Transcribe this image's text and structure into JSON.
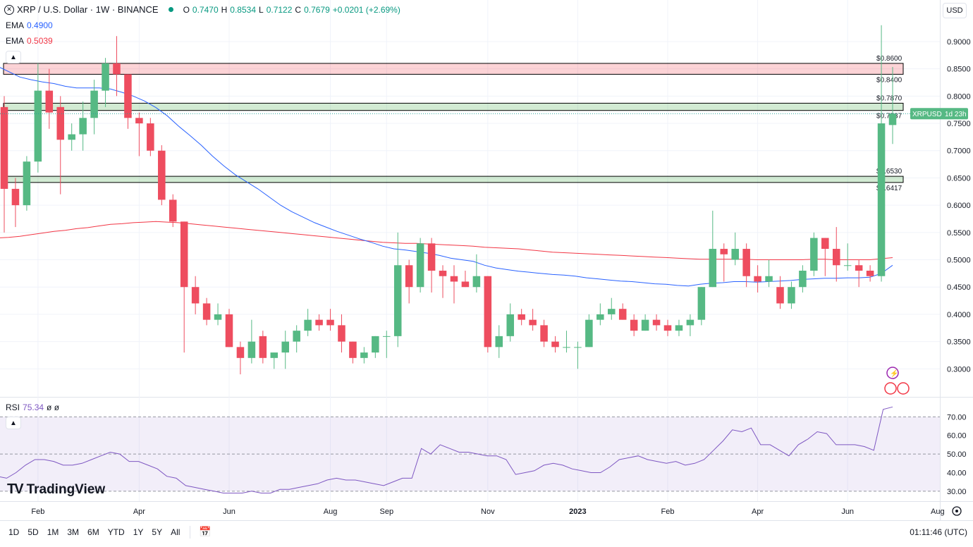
{
  "header": {
    "symbol_title": "XRP / U.S. Dollar · 1W · BINANCE",
    "ohlc": {
      "o_label": "O",
      "o": "0.7470",
      "h_label": "H",
      "h": "0.8534",
      "l_label": "L",
      "l": "0.7122",
      "c_label": "C",
      "c": "0.7679",
      "chg": "+0.0201 (+2.69%)"
    },
    "ema1_label": "EMA",
    "ema1_value": "0.4900",
    "ema2_label": "EMA",
    "ema2_value": "0.5039",
    "currency": "USD"
  },
  "colors": {
    "up": "#26a69a",
    "down": "#ef5350",
    "up_body": "#56b984",
    "down_body": "#ee4d5f",
    "ema_fast": "#2962ff",
    "ema_slow": "#f23645",
    "rsi": "#7e57c2"
  },
  "chart_data": {
    "type": "candlestick",
    "y_axis_ticks": [
      "0.3000",
      "0.3500",
      "0.4000",
      "0.4500",
      "0.5000",
      "0.5500",
      "0.6000",
      "0.6500",
      "0.7000",
      "0.7500",
      "0.8000",
      "0.8500",
      "0.9000"
    ],
    "ylim": [
      0.25,
      0.94
    ],
    "x_axis_labels": [
      "Feb",
      "Apr",
      "Jun",
      "Aug",
      "Sep",
      "Nov",
      "2023",
      "Feb",
      "Apr",
      "Jun",
      "Aug"
    ],
    "candles": [
      {
        "o": 0.78,
        "h": 0.8,
        "l": 0.55,
        "c": 0.63
      },
      {
        "o": 0.63,
        "h": 0.65,
        "l": 0.56,
        "c": 0.6
      },
      {
        "o": 0.6,
        "h": 0.69,
        "l": 0.59,
        "c": 0.68
      },
      {
        "o": 0.68,
        "h": 0.86,
        "l": 0.66,
        "c": 0.81
      },
      {
        "o": 0.81,
        "h": 0.85,
        "l": 0.74,
        "c": 0.77
      },
      {
        "o": 0.78,
        "h": 0.8,
        "l": 0.62,
        "c": 0.72
      },
      {
        "o": 0.72,
        "h": 0.75,
        "l": 0.7,
        "c": 0.73
      },
      {
        "o": 0.73,
        "h": 0.79,
        "l": 0.7,
        "c": 0.76
      },
      {
        "o": 0.76,
        "h": 0.83,
        "l": 0.73,
        "c": 0.81
      },
      {
        "o": 0.81,
        "h": 0.87,
        "l": 0.78,
        "c": 0.86
      },
      {
        "o": 0.86,
        "h": 0.91,
        "l": 0.8,
        "c": 0.84
      },
      {
        "o": 0.84,
        "h": 0.84,
        "l": 0.74,
        "c": 0.76
      },
      {
        "o": 0.76,
        "h": 0.77,
        "l": 0.69,
        "c": 0.75
      },
      {
        "o": 0.75,
        "h": 0.76,
        "l": 0.69,
        "c": 0.7
      },
      {
        "o": 0.7,
        "h": 0.71,
        "l": 0.6,
        "c": 0.61
      },
      {
        "o": 0.61,
        "h": 0.62,
        "l": 0.56,
        "c": 0.57
      },
      {
        "o": 0.57,
        "h": 0.57,
        "l": 0.33,
        "c": 0.45
      },
      {
        "o": 0.45,
        "h": 0.47,
        "l": 0.4,
        "c": 0.42
      },
      {
        "o": 0.42,
        "h": 0.43,
        "l": 0.38,
        "c": 0.39
      },
      {
        "o": 0.39,
        "h": 0.42,
        "l": 0.38,
        "c": 0.4
      },
      {
        "o": 0.4,
        "h": 0.41,
        "l": 0.34,
        "c": 0.34
      },
      {
        "o": 0.34,
        "h": 0.35,
        "l": 0.29,
        "c": 0.32
      },
      {
        "o": 0.32,
        "h": 0.39,
        "l": 0.31,
        "c": 0.35
      },
      {
        "o": 0.36,
        "h": 0.37,
        "l": 0.31,
        "c": 0.32
      },
      {
        "o": 0.32,
        "h": 0.33,
        "l": 0.3,
        "c": 0.33
      },
      {
        "o": 0.33,
        "h": 0.37,
        "l": 0.3,
        "c": 0.35
      },
      {
        "o": 0.35,
        "h": 0.38,
        "l": 0.33,
        "c": 0.37
      },
      {
        "o": 0.37,
        "h": 0.41,
        "l": 0.36,
        "c": 0.39
      },
      {
        "o": 0.39,
        "h": 0.4,
        "l": 0.37,
        "c": 0.38
      },
      {
        "o": 0.39,
        "h": 0.41,
        "l": 0.37,
        "c": 0.38
      },
      {
        "o": 0.38,
        "h": 0.4,
        "l": 0.33,
        "c": 0.35
      },
      {
        "o": 0.35,
        "h": 0.35,
        "l": 0.31,
        "c": 0.32
      },
      {
        "o": 0.32,
        "h": 0.34,
        "l": 0.31,
        "c": 0.33
      },
      {
        "o": 0.33,
        "h": 0.36,
        "l": 0.32,
        "c": 0.36
      },
      {
        "o": 0.36,
        "h": 0.37,
        "l": 0.32,
        "c": 0.36
      },
      {
        "o": 0.36,
        "h": 0.55,
        "l": 0.34,
        "c": 0.49
      },
      {
        "o": 0.49,
        "h": 0.5,
        "l": 0.42,
        "c": 0.45
      },
      {
        "o": 0.45,
        "h": 0.54,
        "l": 0.44,
        "c": 0.53
      },
      {
        "o": 0.53,
        "h": 0.54,
        "l": 0.44,
        "c": 0.48
      },
      {
        "o": 0.48,
        "h": 0.49,
        "l": 0.43,
        "c": 0.47
      },
      {
        "o": 0.47,
        "h": 0.49,
        "l": 0.42,
        "c": 0.46
      },
      {
        "o": 0.46,
        "h": 0.48,
        "l": 0.45,
        "c": 0.45
      },
      {
        "o": 0.45,
        "h": 0.51,
        "l": 0.44,
        "c": 0.47
      },
      {
        "o": 0.47,
        "h": 0.47,
        "l": 0.33,
        "c": 0.34
      },
      {
        "o": 0.34,
        "h": 0.38,
        "l": 0.32,
        "c": 0.36
      },
      {
        "o": 0.36,
        "h": 0.42,
        "l": 0.35,
        "c": 0.4
      },
      {
        "o": 0.4,
        "h": 0.41,
        "l": 0.38,
        "c": 0.39
      },
      {
        "o": 0.39,
        "h": 0.41,
        "l": 0.37,
        "c": 0.38
      },
      {
        "o": 0.38,
        "h": 0.39,
        "l": 0.34,
        "c": 0.35
      },
      {
        "o": 0.35,
        "h": 0.36,
        "l": 0.33,
        "c": 0.34
      },
      {
        "o": 0.34,
        "h": 0.37,
        "l": 0.33,
        "c": 0.34
      },
      {
        "o": 0.34,
        "h": 0.35,
        "l": 0.3,
        "c": 0.34
      },
      {
        "o": 0.34,
        "h": 0.4,
        "l": 0.34,
        "c": 0.39
      },
      {
        "o": 0.39,
        "h": 0.42,
        "l": 0.38,
        "c": 0.4
      },
      {
        "o": 0.4,
        "h": 0.43,
        "l": 0.39,
        "c": 0.41
      },
      {
        "o": 0.41,
        "h": 0.42,
        "l": 0.39,
        "c": 0.39
      },
      {
        "o": 0.39,
        "h": 0.4,
        "l": 0.36,
        "c": 0.37
      },
      {
        "o": 0.37,
        "h": 0.4,
        "l": 0.37,
        "c": 0.39
      },
      {
        "o": 0.39,
        "h": 0.4,
        "l": 0.37,
        "c": 0.38
      },
      {
        "o": 0.38,
        "h": 0.39,
        "l": 0.36,
        "c": 0.37
      },
      {
        "o": 0.37,
        "h": 0.39,
        "l": 0.36,
        "c": 0.38
      },
      {
        "o": 0.38,
        "h": 0.4,
        "l": 0.36,
        "c": 0.39
      },
      {
        "o": 0.39,
        "h": 0.45,
        "l": 0.38,
        "c": 0.45
      },
      {
        "o": 0.45,
        "h": 0.59,
        "l": 0.45,
        "c": 0.52
      },
      {
        "o": 0.52,
        "h": 0.53,
        "l": 0.46,
        "c": 0.51
      },
      {
        "o": 0.5,
        "h": 0.55,
        "l": 0.49,
        "c": 0.52
      },
      {
        "o": 0.52,
        "h": 0.53,
        "l": 0.45,
        "c": 0.47
      },
      {
        "o": 0.47,
        "h": 0.49,
        "l": 0.44,
        "c": 0.46
      },
      {
        "o": 0.46,
        "h": 0.5,
        "l": 0.45,
        "c": 0.47
      },
      {
        "o": 0.45,
        "h": 0.47,
        "l": 0.41,
        "c": 0.42
      },
      {
        "o": 0.42,
        "h": 0.46,
        "l": 0.41,
        "c": 0.45
      },
      {
        "o": 0.45,
        "h": 0.49,
        "l": 0.44,
        "c": 0.48
      },
      {
        "o": 0.48,
        "h": 0.55,
        "l": 0.47,
        "c": 0.54
      },
      {
        "o": 0.54,
        "h": 0.54,
        "l": 0.47,
        "c": 0.52
      },
      {
        "o": 0.52,
        "h": 0.56,
        "l": 0.46,
        "c": 0.49
      },
      {
        "o": 0.49,
        "h": 0.53,
        "l": 0.48,
        "c": 0.49
      },
      {
        "o": 0.49,
        "h": 0.5,
        "l": 0.45,
        "c": 0.48
      },
      {
        "o": 0.48,
        "h": 0.49,
        "l": 0.46,
        "c": 0.47
      },
      {
        "o": 0.47,
        "h": 0.93,
        "l": 0.46,
        "c": 0.75
      },
      {
        "o": 0.747,
        "h": 0.8534,
        "l": 0.7122,
        "c": 0.7679
      }
    ],
    "ema_fast": [
      0.855,
      0.845,
      0.835,
      0.83,
      0.826,
      0.823,
      0.818,
      0.815,
      0.815,
      0.815,
      0.813,
      0.807,
      0.8,
      0.791,
      0.779,
      0.764,
      0.745,
      0.728,
      0.71,
      0.69,
      0.672,
      0.656,
      0.643,
      0.63,
      0.615,
      0.6,
      0.588,
      0.578,
      0.568,
      0.56,
      0.552,
      0.545,
      0.538,
      0.532,
      0.525,
      0.52,
      0.518,
      0.515,
      0.512,
      0.508,
      0.503,
      0.5,
      0.497,
      0.49,
      0.485,
      0.482,
      0.479,
      0.477,
      0.475,
      0.473,
      0.472,
      0.47,
      0.467,
      0.465,
      0.463,
      0.461,
      0.46,
      0.458,
      0.456,
      0.455,
      0.453,
      0.452,
      0.455,
      0.457,
      0.458,
      0.46,
      0.46,
      0.459,
      0.46,
      0.461,
      0.462,
      0.464,
      0.465,
      0.466,
      0.466,
      0.467,
      0.467,
      0.468,
      0.475,
      0.49
    ],
    "ema_slow": [
      0.54,
      0.541,
      0.543,
      0.546,
      0.549,
      0.552,
      0.554,
      0.557,
      0.559,
      0.562,
      0.565,
      0.566,
      0.568,
      0.569,
      0.57,
      0.569,
      0.568,
      0.566,
      0.564,
      0.562,
      0.56,
      0.558,
      0.556,
      0.554,
      0.552,
      0.55,
      0.548,
      0.546,
      0.544,
      0.542,
      0.54,
      0.538,
      0.536,
      0.534,
      0.532,
      0.531,
      0.53,
      0.53,
      0.529,
      0.528,
      0.527,
      0.526,
      0.525,
      0.523,
      0.522,
      0.521,
      0.52,
      0.518,
      0.516,
      0.514,
      0.513,
      0.512,
      0.511,
      0.51,
      0.509,
      0.508,
      0.507,
      0.506,
      0.505,
      0.504,
      0.503,
      0.502,
      0.501,
      0.501,
      0.501,
      0.501,
      0.501,
      0.5,
      0.5,
      0.5,
      0.5,
      0.5,
      0.501,
      0.501,
      0.5,
      0.5,
      0.5,
      0.5,
      0.502,
      0.5039
    ],
    "zones": [
      {
        "label_top": "$0.8600",
        "label_bottom": "$0.8400",
        "top": 0.86,
        "bottom": 0.84,
        "kind": "resistance"
      },
      {
        "label_top": "$0.7870",
        "label_bottom": "$0.7737",
        "top": 0.787,
        "bottom": 0.7737,
        "kind": "support"
      },
      {
        "label_top": "$0.6530",
        "label_bottom": "$0.6417",
        "top": 0.653,
        "bottom": 0.6417,
        "kind": "support"
      }
    ],
    "last_price_tag": {
      "symbol": "XRPUSD",
      "countdown": "1d 23h",
      "value": 0.7679
    }
  },
  "rsi": {
    "label": "RSI",
    "value": "75.34",
    "extra": "ø ø",
    "ticks": [
      "30.00",
      "40.00",
      "50.00",
      "60.00",
      "70.00"
    ],
    "ylim": [
      25,
      80
    ],
    "values": [
      38,
      37,
      40,
      44,
      47,
      47,
      46,
      44,
      44,
      45,
      47,
      49,
      51,
      50,
      46,
      46,
      44,
      42,
      38,
      37,
      33,
      32,
      31,
      30,
      29,
      29,
      29,
      30,
      29,
      29,
      31,
      31,
      32,
      33,
      34,
      36,
      37,
      36,
      36,
      35,
      34,
      33,
      35,
      37,
      37,
      53,
      50,
      55,
      53,
      51,
      51,
      50,
      49,
      49,
      47,
      39,
      40,
      41,
      44,
      45,
      44,
      42,
      41,
      40,
      40,
      43,
      47,
      48,
      49,
      47,
      46,
      45,
      46,
      44,
      45,
      47,
      52,
      57,
      63,
      62,
      64,
      55,
      55,
      52,
      49,
      55,
      58,
      62,
      61,
      55,
      55,
      55,
      54,
      52,
      74,
      75.34
    ],
    "rsi_ticks_values": [
      30,
      40,
      50,
      60,
      70
    ]
  },
  "timeframes": [
    "1D",
    "5D",
    "1M",
    "3M",
    "6M",
    "YTD",
    "1Y",
    "5Y",
    "All"
  ],
  "clock": "01:11:46 (UTC)",
  "logo_text": "TradingView"
}
